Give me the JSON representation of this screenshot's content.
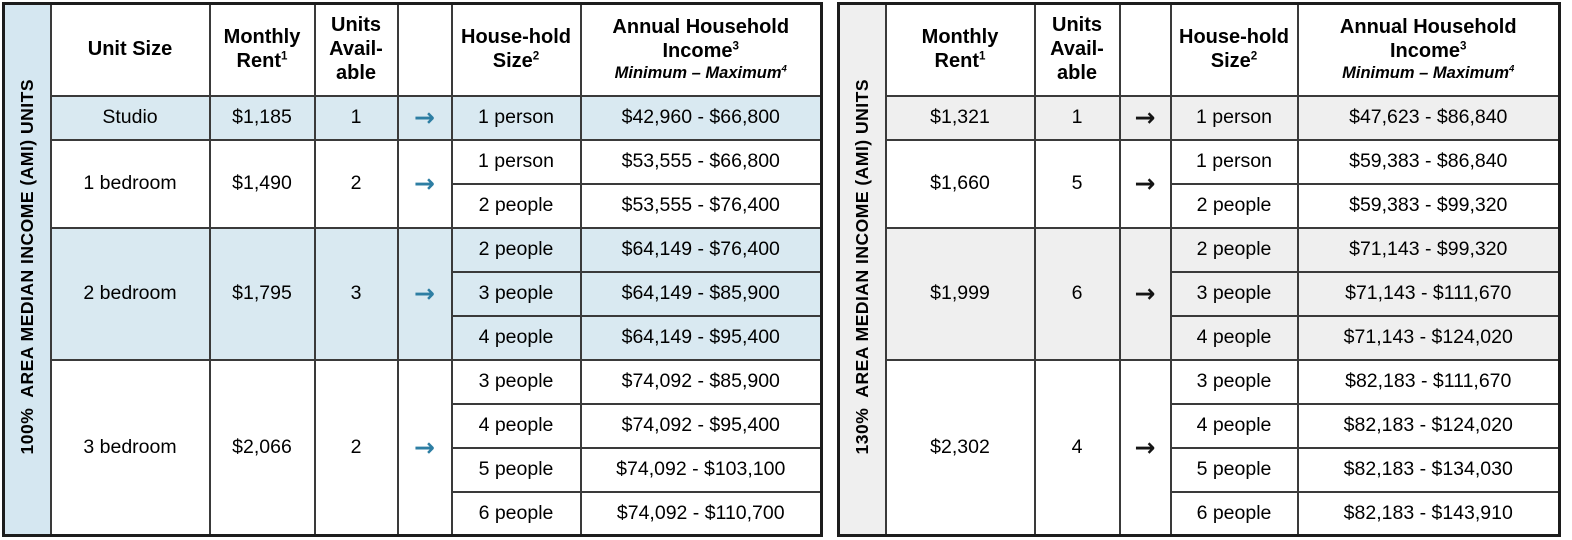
{
  "arrow_glyph": "→",
  "colors": {
    "blue_shade": "#d9e9f1",
    "blue_label_bg": "#d5e7f1",
    "gray_shade": "#efefef",
    "teal_arrow": "#2d7ea3",
    "black_arrow": "#151515",
    "border": "#3a3a3a"
  },
  "headers": {
    "unit_size": "Unit Size",
    "monthly_rent": "Monthly\nRent",
    "monthly_rent_sup": "1",
    "units_available": "Units\nAvail-\nable",
    "household_size": "House-hold\nSize",
    "household_size_sup": "2",
    "income_title": "Annual Household\nIncome",
    "income_title_sup": "3",
    "income_subtitle": "Minimum – Maximum",
    "income_subtitle_sup": "4"
  },
  "tables": [
    {
      "name": "100-percent-ami",
      "vertical_label": "100%  AREA MEDIAN INCOME (AMI) UNITS",
      "show_unit_size": true,
      "groups": [
        {
          "unit_size": "Studio",
          "rent": "$1,185",
          "units": "1",
          "shaded": true,
          "rows": [
            {
              "household": "1 person",
              "income": "$42,960 - $66,800"
            }
          ]
        },
        {
          "unit_size": "1 bedroom",
          "rent": "$1,490",
          "units": "2",
          "shaded": false,
          "rows": [
            {
              "household": "1 person",
              "income": "$53,555 - $66,800"
            },
            {
              "household": "2 people",
              "income": "$53,555 - $76,400"
            }
          ]
        },
        {
          "unit_size": "2 bedroom",
          "rent": "$1,795",
          "units": "3",
          "shaded": true,
          "rows": [
            {
              "household": "2 people",
              "income": "$64,149 - $76,400"
            },
            {
              "household": "3 people",
              "income": "$64,149 - $85,900"
            },
            {
              "household": "4 people",
              "income": "$64,149 - $95,400"
            }
          ]
        },
        {
          "unit_size": "3 bedroom",
          "rent": "$2,066",
          "units": "2",
          "shaded": false,
          "rows": [
            {
              "household": "3 people",
              "income": "$74,092 - $85,900"
            },
            {
              "household": "4 people",
              "income": "$74,092 - $95,400"
            },
            {
              "household": "5 people",
              "income": "$74,092 - $103,100"
            },
            {
              "household": "6 people",
              "income": "$74,092 - $110,700"
            }
          ]
        }
      ]
    },
    {
      "name": "130-percent-ami",
      "vertical_label": "130%  AREA MEDIAN INCOME (AMI) UNITS",
      "show_unit_size": false,
      "groups": [
        {
          "rent": "$1,321",
          "units": "1",
          "shaded": true,
          "rows": [
            {
              "household": "1 person",
              "income": "$47,623 - $86,840"
            }
          ]
        },
        {
          "rent": "$1,660",
          "units": "5",
          "shaded": false,
          "rows": [
            {
              "household": "1 person",
              "income": "$59,383 - $86,840"
            },
            {
              "household": "2 people",
              "income": "$59,383 - $99,320"
            }
          ]
        },
        {
          "rent": "$1,999",
          "units": "6",
          "shaded": true,
          "rows": [
            {
              "household": "2 people",
              "income": "$71,143 - $99,320"
            },
            {
              "household": "3 people",
              "income": "$71,143 - $111,670"
            },
            {
              "household": "4 people",
              "income": "$71,143 - $124,020"
            }
          ]
        },
        {
          "rent": "$2,302",
          "units": "4",
          "shaded": false,
          "rows": [
            {
              "household": "3 people",
              "income": "$82,183 - $111,670"
            },
            {
              "household": "4 people",
              "income": "$82,183 - $124,020"
            },
            {
              "household": "5 people",
              "income": "$82,183 - $134,030"
            },
            {
              "household": "6 people",
              "income": "$82,183 - $143,910"
            }
          ]
        }
      ]
    }
  ]
}
